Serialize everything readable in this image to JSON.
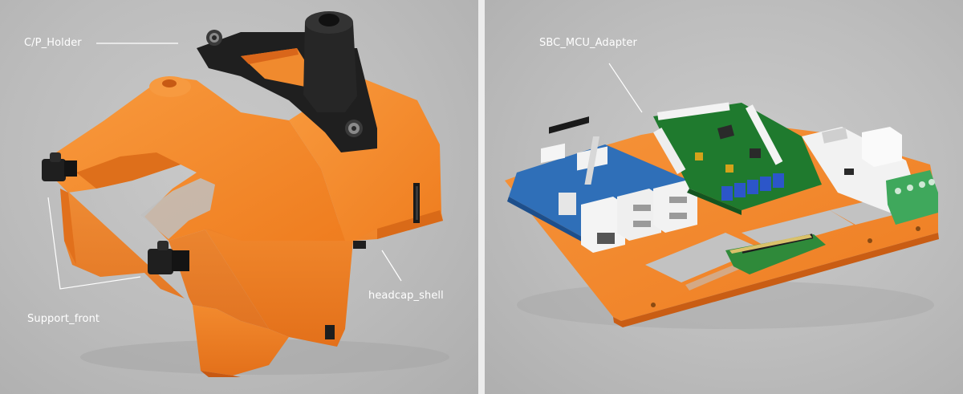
{
  "labels": {
    "cp_holder": "C/P_Holder",
    "support_front": "Support_front",
    "headcap_shell": "headcap_shell",
    "sbc_mcu_adapter": "SBC_MCU_Adapter"
  },
  "colors": {
    "orange_part": "#f5882a",
    "black_part": "#1f1f1f",
    "pcb_green": "#1f7a2e",
    "pcb_blue": "#2f6fb8",
    "terminal_blue": "#2c56c9",
    "terminal_green": "#3fa85c",
    "label_text": "#ffffff"
  }
}
